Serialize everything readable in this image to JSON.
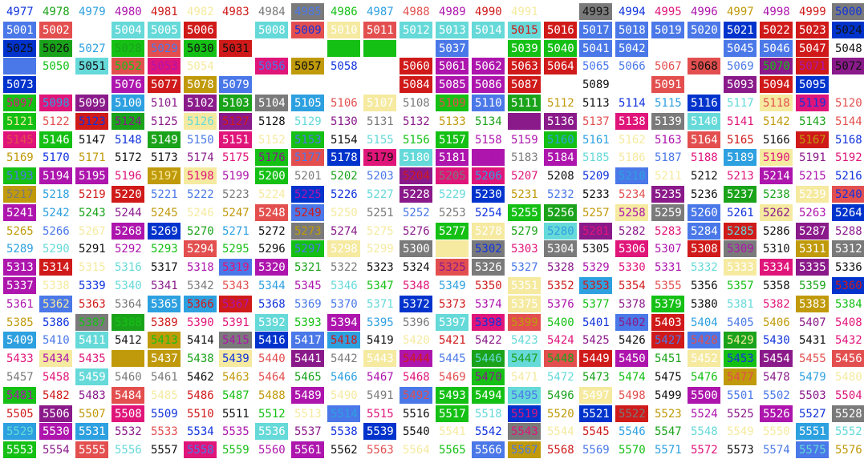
{
  "grid": {
    "start": 4977,
    "columns": 24,
    "rows": 25,
    "palette": {
      "A": "#0033cc",
      "B": "#4a78e8",
      "C": "#2da0e0",
      "D": "#66d9d9",
      "E": "#15c015",
      "F": "#1aa31a",
      "G": "#c09a0a",
      "H": "#f5eaa0",
      "I": "#e34f4f",
      "J": "#d01a1a",
      "K": "#e0157a",
      "L": "#ad15ad",
      "M": "#8a1a8a",
      "N": "#7a7a7a",
      "O": "#ffffff"
    },
    "text_palette": {
      "a": "#1133dd",
      "b": "#4a78e8",
      "c": "#2da0e0",
      "d": "#66d9d9",
      "e": "#15c015",
      "f": "#1aa31a",
      "g": "#c09a0a",
      "h": "#f5eaa0",
      "i": "#e34f4f",
      "j": "#d01a1a",
      "k": "#e0157a",
      "l": "#ad15ad",
      "m": "#8a1a8a",
      "n": "#7a7a7a",
      "o": "#ffffff",
      "x": "#111111"
    },
    "backgrounds": [
      "OOOOOOOONOOOOOOONOOOOOON",
      "BOOOOOOOBOOAOOOJBBBBAJJA",
      "AFOBOOJOJOOEEEEOBBOOBBJO",
      "OOOOOOOOOOOOOOOOOOOAOOOM",
      "AOOOOGBOOOOJLLJOOOIOMJAO",
      "OOOOOOOOOOOOOOOONOOOOOOO",
      "OOOOOOOOOOOOOOOOAOAOOOOO",
      "BOAOBOBOOOOOOOOOOOOOOOOO",
      "BOOOOAOOOOOOOOOOOOOOOOOO",
      "AOOOOOGOOOOOOOOOOOOOOOOO",
      "OFOOOOOOOOOOOOOOOOOOOOOO",
      "OOOOOOOOOOOOOOOOOOOOOOOO",
      "OOOOOOOOOOOOOOOOOOOOOOOO",
      "OOOOOOOOOOOOOOOOOOOOOOOO",
      "OOOOOOOOOOOOOOOOOOOOOOOO",
      "OOOOOOOOOOOOOOOOOOOOOOOO",
      "OOOOOOOOOOOOOOOOOOOOOOOO",
      "OOOOOOOOOOOOOOOOOOOOOOOO",
      "OOOOOOOOOOOOOOOOOOOOOOOO",
      "OOOOOOOOOOOOOOOOOOOOOOOO",
      "OOOOOOOOOOOOOOOOOOOOOOOO",
      "OOOOOOOOOOOOOOOOOOOOOOOO",
      "OOOOOOOOOOOOOOOOOOOOOOOO",
      "OOOOOOOOOOOOOOOOOOOOOOOO",
      "OOOOOOOOOOOOOOOOOOOOOOOO"
    ],
    "text_colors": [
      "afcljhjnbeciljhoxaklglja",
      "boooooooaooooojoooooooox",
      "oooooojoooooooooxobbooox",
      "bexeeeaoaoooooooooooooob",
      "oooooooooooooooooooooooo",
      "bfhjlhooxfacklgjnbecjlox",
      "afcklgjnbecjlbjxafbcjlox",
      "oooooooooooooooooooooooo",
      "ooooooooxooooooooooooooo",
      "oooooooooooooooooooooooo",
      "oooooooooooooooooooooooo",
      "bfdjlgjnaecjklnbafcknxio",
      "oooooooooooooooooooooooo",
      "oooooooooooooooooooooooo",
      "oooooooooooooooooooooooo",
      "oooooooooooooooooooooooo",
      "oooooooooooooooooooooooo",
      "oooooooooooooooooooooooo",
      "oooooooooooooooooooooooo",
      "oooooooooooooooooooooooo",
      "oooooooooooooooooooooooo",
      "oooooooooooooooooooooooo",
      "oooooooooooooooooooooooo",
      "oooooooooooooooooooooooo",
      "oooooooooooooooooooooooo"
    ],
    "rows_detail": [
      {
        "bg": "OOOOOOOONOOOOOOONOOOOOON",
        "tx": "afcljhjnbeciljhoxaklglja"
      },
      {
        "bg": "BIODDJODIHIDDDDJBBBBAJJA",
        "tx": "ooooooooaooooojoooooooox"
      },
      {
        "bg": "AFOEIEJOOEEOBOEEBBOOBBJO",
        "tx": "xxcfbxxooeeoooooooooooox"
      },
      {
        "bg": "BODIKOOKGOOJLLJJOOOIOMJM",
        "tx": "bexelhobxaoooooobbixbelx"
      },
      {
        "bg": "AOOLJGBOOOOJLLJOOOIOMJAO",
        "tx": "ooooooooooooooooxooooooo"
      }
    ]
  }
}
